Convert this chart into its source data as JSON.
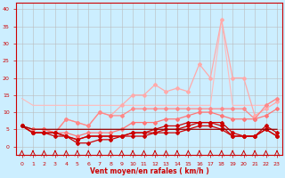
{
  "x": [
    0,
    1,
    2,
    3,
    4,
    5,
    6,
    7,
    8,
    9,
    10,
    11,
    12,
    13,
    14,
    15,
    16,
    17,
    18,
    19,
    20,
    21,
    22,
    23
  ],
  "bg_color": "#cceeff",
  "grid_color": "#bbbbbb",
  "xlabel": "Vent moyen/en rafales ( km/h )",
  "xlabel_color": "#cc0000",
  "ylim": [
    -2.5,
    42
  ],
  "xlim": [
    -0.5,
    23.5
  ],
  "yticks": [
    0,
    5,
    10,
    15,
    20,
    25,
    30,
    35,
    40
  ],
  "xticks": [
    0,
    1,
    2,
    3,
    4,
    5,
    6,
    7,
    8,
    9,
    10,
    11,
    12,
    13,
    14,
    15,
    16,
    17,
    18,
    19,
    20,
    21,
    22,
    23
  ],
  "line_light1": [
    14,
    12,
    12,
    12,
    12,
    12,
    12,
    12,
    12,
    12,
    12,
    12,
    12,
    12,
    12,
    12,
    12,
    12,
    37,
    12,
    12,
    12,
    12,
    14
  ],
  "line_light2": [
    6,
    5,
    5,
    4,
    8,
    7,
    6,
    10,
    9,
    12,
    15,
    15,
    18,
    16,
    17,
    16,
    24,
    20,
    37,
    20,
    20,
    9,
    11,
    13
  ],
  "line_med1": [
    6,
    5,
    5,
    4,
    8,
    7,
    6,
    10,
    9,
    9,
    11,
    11,
    11,
    11,
    11,
    11,
    11,
    11,
    11,
    11,
    11,
    8,
    12,
    14
  ],
  "line_med2": [
    6,
    5,
    5,
    4,
    4,
    3,
    4,
    4,
    4,
    5,
    7,
    7,
    7,
    8,
    8,
    9,
    10,
    10,
    9,
    8,
    8,
    8,
    9,
    11
  ],
  "line_dark1": [
    6,
    4,
    4,
    3,
    3,
    1,
    1,
    2,
    2,
    3,
    4,
    4,
    5,
    6,
    6,
    7,
    7,
    7,
    7,
    4,
    3,
    3,
    6,
    4
  ],
  "line_dark2": [
    6,
    4,
    4,
    4,
    3,
    2,
    3,
    3,
    3,
    3,
    4,
    4,
    4,
    5,
    5,
    6,
    7,
    7,
    6,
    3,
    3,
    3,
    5,
    3
  ],
  "line_dark3": [
    6,
    4,
    4,
    4,
    3,
    2,
    3,
    3,
    3,
    3,
    3,
    3,
    4,
    4,
    4,
    5,
    6,
    6,
    5,
    3,
    3,
    3,
    5,
    3
  ],
  "line_flat": [
    6,
    5,
    5,
    5,
    5,
    5,
    5,
    5,
    5,
    5,
    5,
    5,
    5,
    5,
    5,
    5,
    5,
    5,
    5,
    5,
    5,
    5,
    5,
    5
  ],
  "arrow_directions": [
    45,
    45,
    45,
    90,
    90,
    90,
    90,
    90,
    90,
    90,
    90,
    90,
    90,
    90,
    45,
    45,
    45,
    90,
    135,
    90,
    45,
    45,
    45,
    135
  ]
}
